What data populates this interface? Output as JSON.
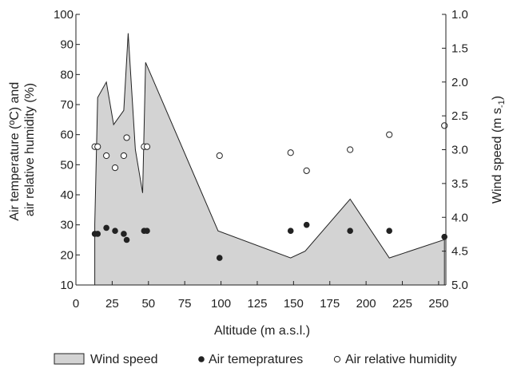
{
  "chart_data": {
    "type": "area",
    "xlabel": "Altitude (m a.s.l.)",
    "ylabel_left": [
      "Air temperature (ºC) and",
      "air relative humidity (%)"
    ],
    "ylabel_right": "Wind speed (m s",
    "ylabel_right_sub": "-1",
    "ylabel_right_close": ")",
    "xlim": [
      0,
      255
    ],
    "ylim_left": [
      10,
      100
    ],
    "ylim_right": [
      1.0,
      5.0
    ],
    "right_axis_inverted": true,
    "grid": false,
    "legend_position": "bottom",
    "x_ticks": [
      "0",
      "25",
      "50",
      "75",
      "100",
      "125",
      "150",
      "175",
      "200",
      "225",
      "250"
    ],
    "y_left_ticks": [
      "10",
      "20",
      "30",
      "40",
      "50",
      "60",
      "70",
      "80",
      "90",
      "100"
    ],
    "y_right_ticks": [
      "1.0",
      "1.5",
      "2.0",
      "2.5",
      "3.0",
      "3.5",
      "4.0",
      "4.5",
      "5.0"
    ],
    "series": [
      {
        "name": "Wind speed",
        "style": "area",
        "axis": "right",
        "color": "#d3d3d3",
        "points": [
          {
            "x": 13,
            "y": 5.0
          },
          {
            "x": 13,
            "y": 4.1
          },
          {
            "x": 15,
            "y": 2.23
          },
          {
            "x": 21,
            "y": 2.0
          },
          {
            "x": 26,
            "y": 2.63
          },
          {
            "x": 33,
            "y": 2.42
          },
          {
            "x": 36,
            "y": 1.28
          },
          {
            "x": 41,
            "y": 3.0
          },
          {
            "x": 46,
            "y": 3.64
          },
          {
            "x": 48,
            "y": 1.71
          },
          {
            "x": 98,
            "y": 4.2
          },
          {
            "x": 148,
            "y": 4.6
          },
          {
            "x": 158,
            "y": 4.5
          },
          {
            "x": 189,
            "y": 3.73
          },
          {
            "x": 216,
            "y": 4.6
          },
          {
            "x": 254,
            "y": 4.33
          },
          {
            "x": 254,
            "y": 5.0
          }
        ]
      },
      {
        "name": "Air temepratures",
        "style": "filled-marker",
        "axis": "left",
        "color": "#222222",
        "points": [
          {
            "x": 13,
            "y": 27
          },
          {
            "x": 15,
            "y": 27
          },
          {
            "x": 21,
            "y": 29
          },
          {
            "x": 27,
            "y": 28
          },
          {
            "x": 33,
            "y": 27
          },
          {
            "x": 35,
            "y": 25
          },
          {
            "x": 47,
            "y": 28
          },
          {
            "x": 49,
            "y": 28
          },
          {
            "x": 99,
            "y": 19
          },
          {
            "x": 148,
            "y": 28
          },
          {
            "x": 159,
            "y": 30
          },
          {
            "x": 189,
            "y": 28
          },
          {
            "x": 216,
            "y": 28
          },
          {
            "x": 254,
            "y": 26
          }
        ]
      },
      {
        "name": "Air relative humidity",
        "style": "open-marker",
        "axis": "left",
        "color": "#222222",
        "points": [
          {
            "x": 13,
            "y": 56
          },
          {
            "x": 15,
            "y": 56
          },
          {
            "x": 21,
            "y": 53
          },
          {
            "x": 27,
            "y": 49
          },
          {
            "x": 33,
            "y": 53
          },
          {
            "x": 35,
            "y": 59
          },
          {
            "x": 47,
            "y": 56
          },
          {
            "x": 49,
            "y": 56
          },
          {
            "x": 99,
            "y": 53
          },
          {
            "x": 148,
            "y": 54
          },
          {
            "x": 159,
            "y": 48
          },
          {
            "x": 189,
            "y": 55
          },
          {
            "x": 216,
            "y": 60
          },
          {
            "x": 254,
            "y": 63
          }
        ]
      }
    ],
    "legend": [
      {
        "label": "Wind speed",
        "marker": "area"
      },
      {
        "label": "Air temepratures",
        "marker": "filled-circle"
      },
      {
        "label": "Air relative humidity",
        "marker": "open-circle"
      }
    ]
  }
}
